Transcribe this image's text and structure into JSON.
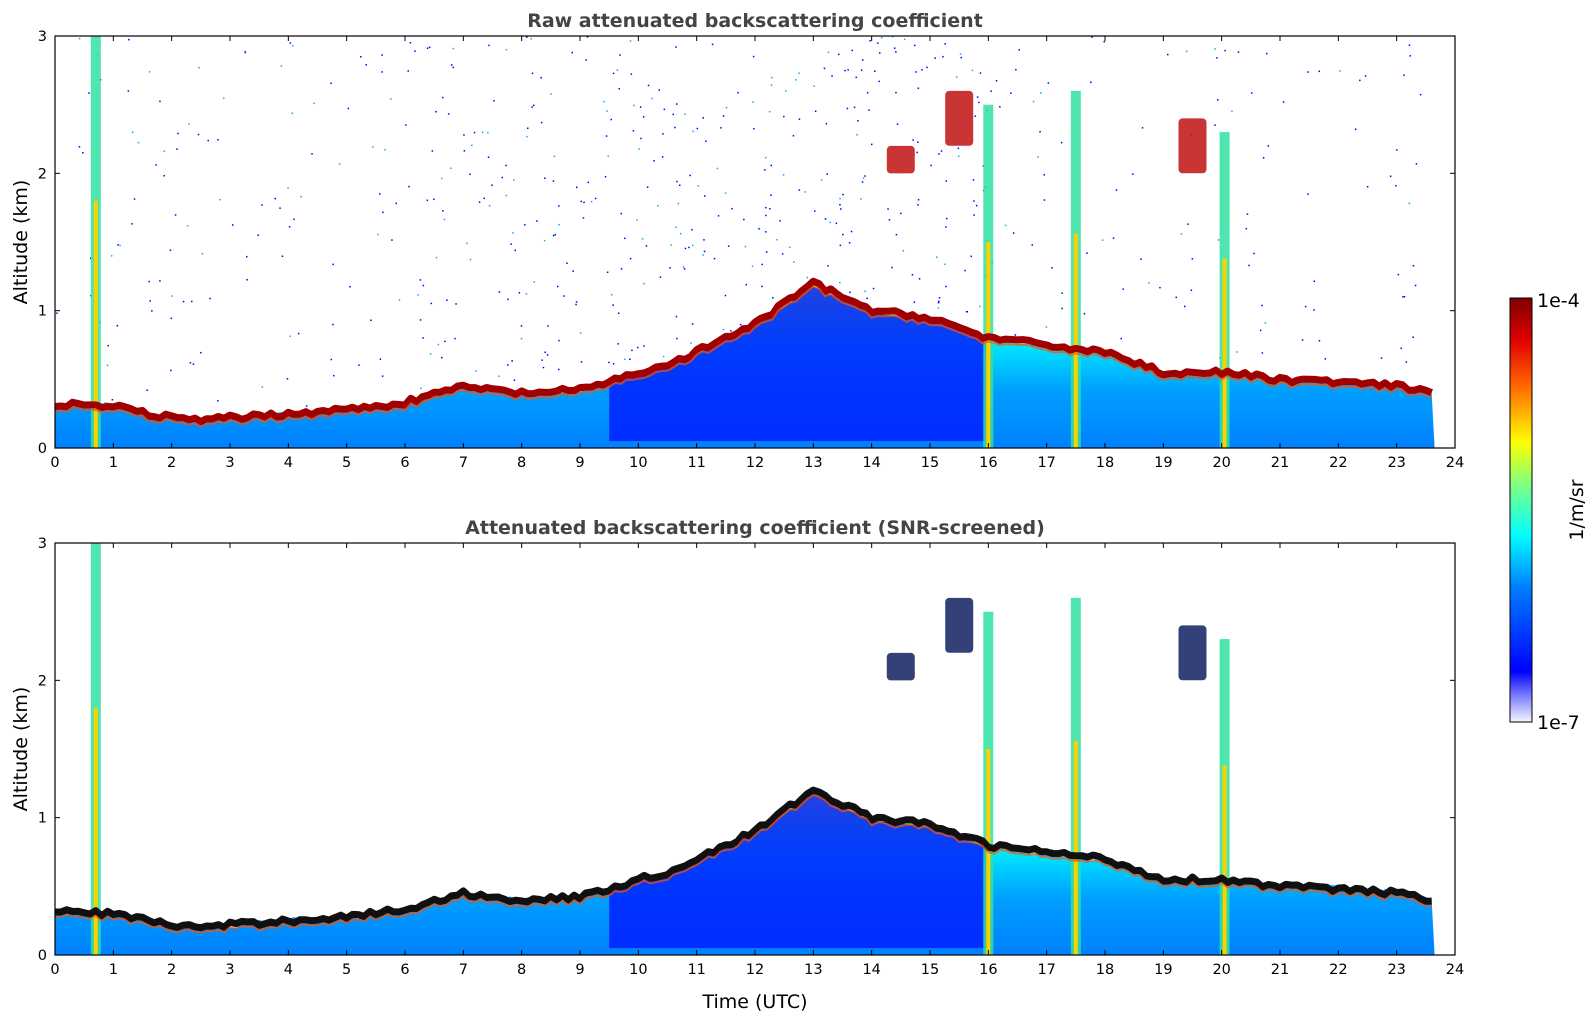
{
  "chart_data": [
    {
      "type": "heatmap",
      "title": "Raw attenuated backscattering coefficient",
      "xlabel": "",
      "ylabel": "Altitude (km)",
      "xlim": [
        0,
        24
      ],
      "ylim": [
        0,
        3
      ],
      "xticks": [
        "0",
        "1",
        "2",
        "3",
        "4",
        "5",
        "6",
        "7",
        "8",
        "9",
        "10",
        "11",
        "12",
        "13",
        "14",
        "15",
        "16",
        "17",
        "18",
        "19",
        "20",
        "21",
        "22",
        "23",
        "24"
      ],
      "yticks": [
        "0",
        "1",
        "2",
        "3"
      ],
      "data_end_time": 23.65,
      "boundary_layer_top_km": [
        [
          0,
          0.32
        ],
        [
          1,
          0.3
        ],
        [
          2,
          0.22
        ],
        [
          2.5,
          0.2
        ],
        [
          3,
          0.22
        ],
        [
          4,
          0.25
        ],
        [
          5,
          0.28
        ],
        [
          6,
          0.33
        ],
        [
          7,
          0.45
        ],
        [
          7.5,
          0.42
        ],
        [
          8,
          0.4
        ],
        [
          9,
          0.42
        ],
        [
          10,
          0.55
        ],
        [
          10.5,
          0.6
        ],
        [
          12,
          0.9
        ],
        [
          13,
          1.2
        ],
        [
          14,
          1.0
        ],
        [
          15,
          0.95
        ],
        [
          16,
          0.8
        ],
        [
          17,
          0.75
        ],
        [
          18,
          0.7
        ],
        [
          19,
          0.55
        ],
        [
          20,
          0.55
        ],
        [
          21,
          0.5
        ],
        [
          22,
          0.48
        ],
        [
          23,
          0.45
        ],
        [
          23.65,
          0.4
        ]
      ],
      "features": [
        {
          "label": "precipitation streak",
          "time_h": 0.7,
          "top_km": 3.0
        },
        {
          "label": "cloud",
          "time_h": 15.5,
          "bottom_km": 2.2,
          "top_km": 2.6
        },
        {
          "label": "precipitation streak",
          "time_h": 16.0,
          "top_km": 2.5
        },
        {
          "label": "precipitation streak",
          "time_h": 17.5,
          "top_km": 2.6
        },
        {
          "label": "precipitation streak",
          "time_h": 20.05,
          "top_km": 2.3
        },
        {
          "label": "cloud",
          "time_h": 19.5,
          "bottom_km": 2.0,
          "top_km": 2.4
        },
        {
          "label": "cloud",
          "time_h": 14.5,
          "bottom_km": 2.0,
          "top_km": 2.2
        }
      ]
    },
    {
      "type": "heatmap",
      "title": "Attenuated backscattering coefficient (SNR-screened)",
      "xlabel": "Time (UTC)",
      "ylabel": "Altitude (km)",
      "xlim": [
        0,
        24
      ],
      "ylim": [
        0,
        3
      ],
      "xticks": [
        "0",
        "1",
        "2",
        "3",
        "4",
        "5",
        "6",
        "7",
        "8",
        "9",
        "10",
        "11",
        "12",
        "13",
        "14",
        "15",
        "16",
        "17",
        "18",
        "19",
        "20",
        "21",
        "22",
        "23",
        "24"
      ],
      "yticks": [
        "0",
        "1",
        "2",
        "3"
      ],
      "data_end_time": 23.65
    }
  ],
  "colorbar": {
    "label": "1/m/sr",
    "max_label": "1e-4",
    "min_label": "1e-7",
    "vmin": 1e-07,
    "vmax": 0.0001,
    "scale": "log",
    "colormap": "jet"
  },
  "colors": {
    "low": "#0000ff",
    "mid": "#00ffff",
    "high_yellow": "#ffff00",
    "high": "#800000",
    "title": "#444444"
  }
}
